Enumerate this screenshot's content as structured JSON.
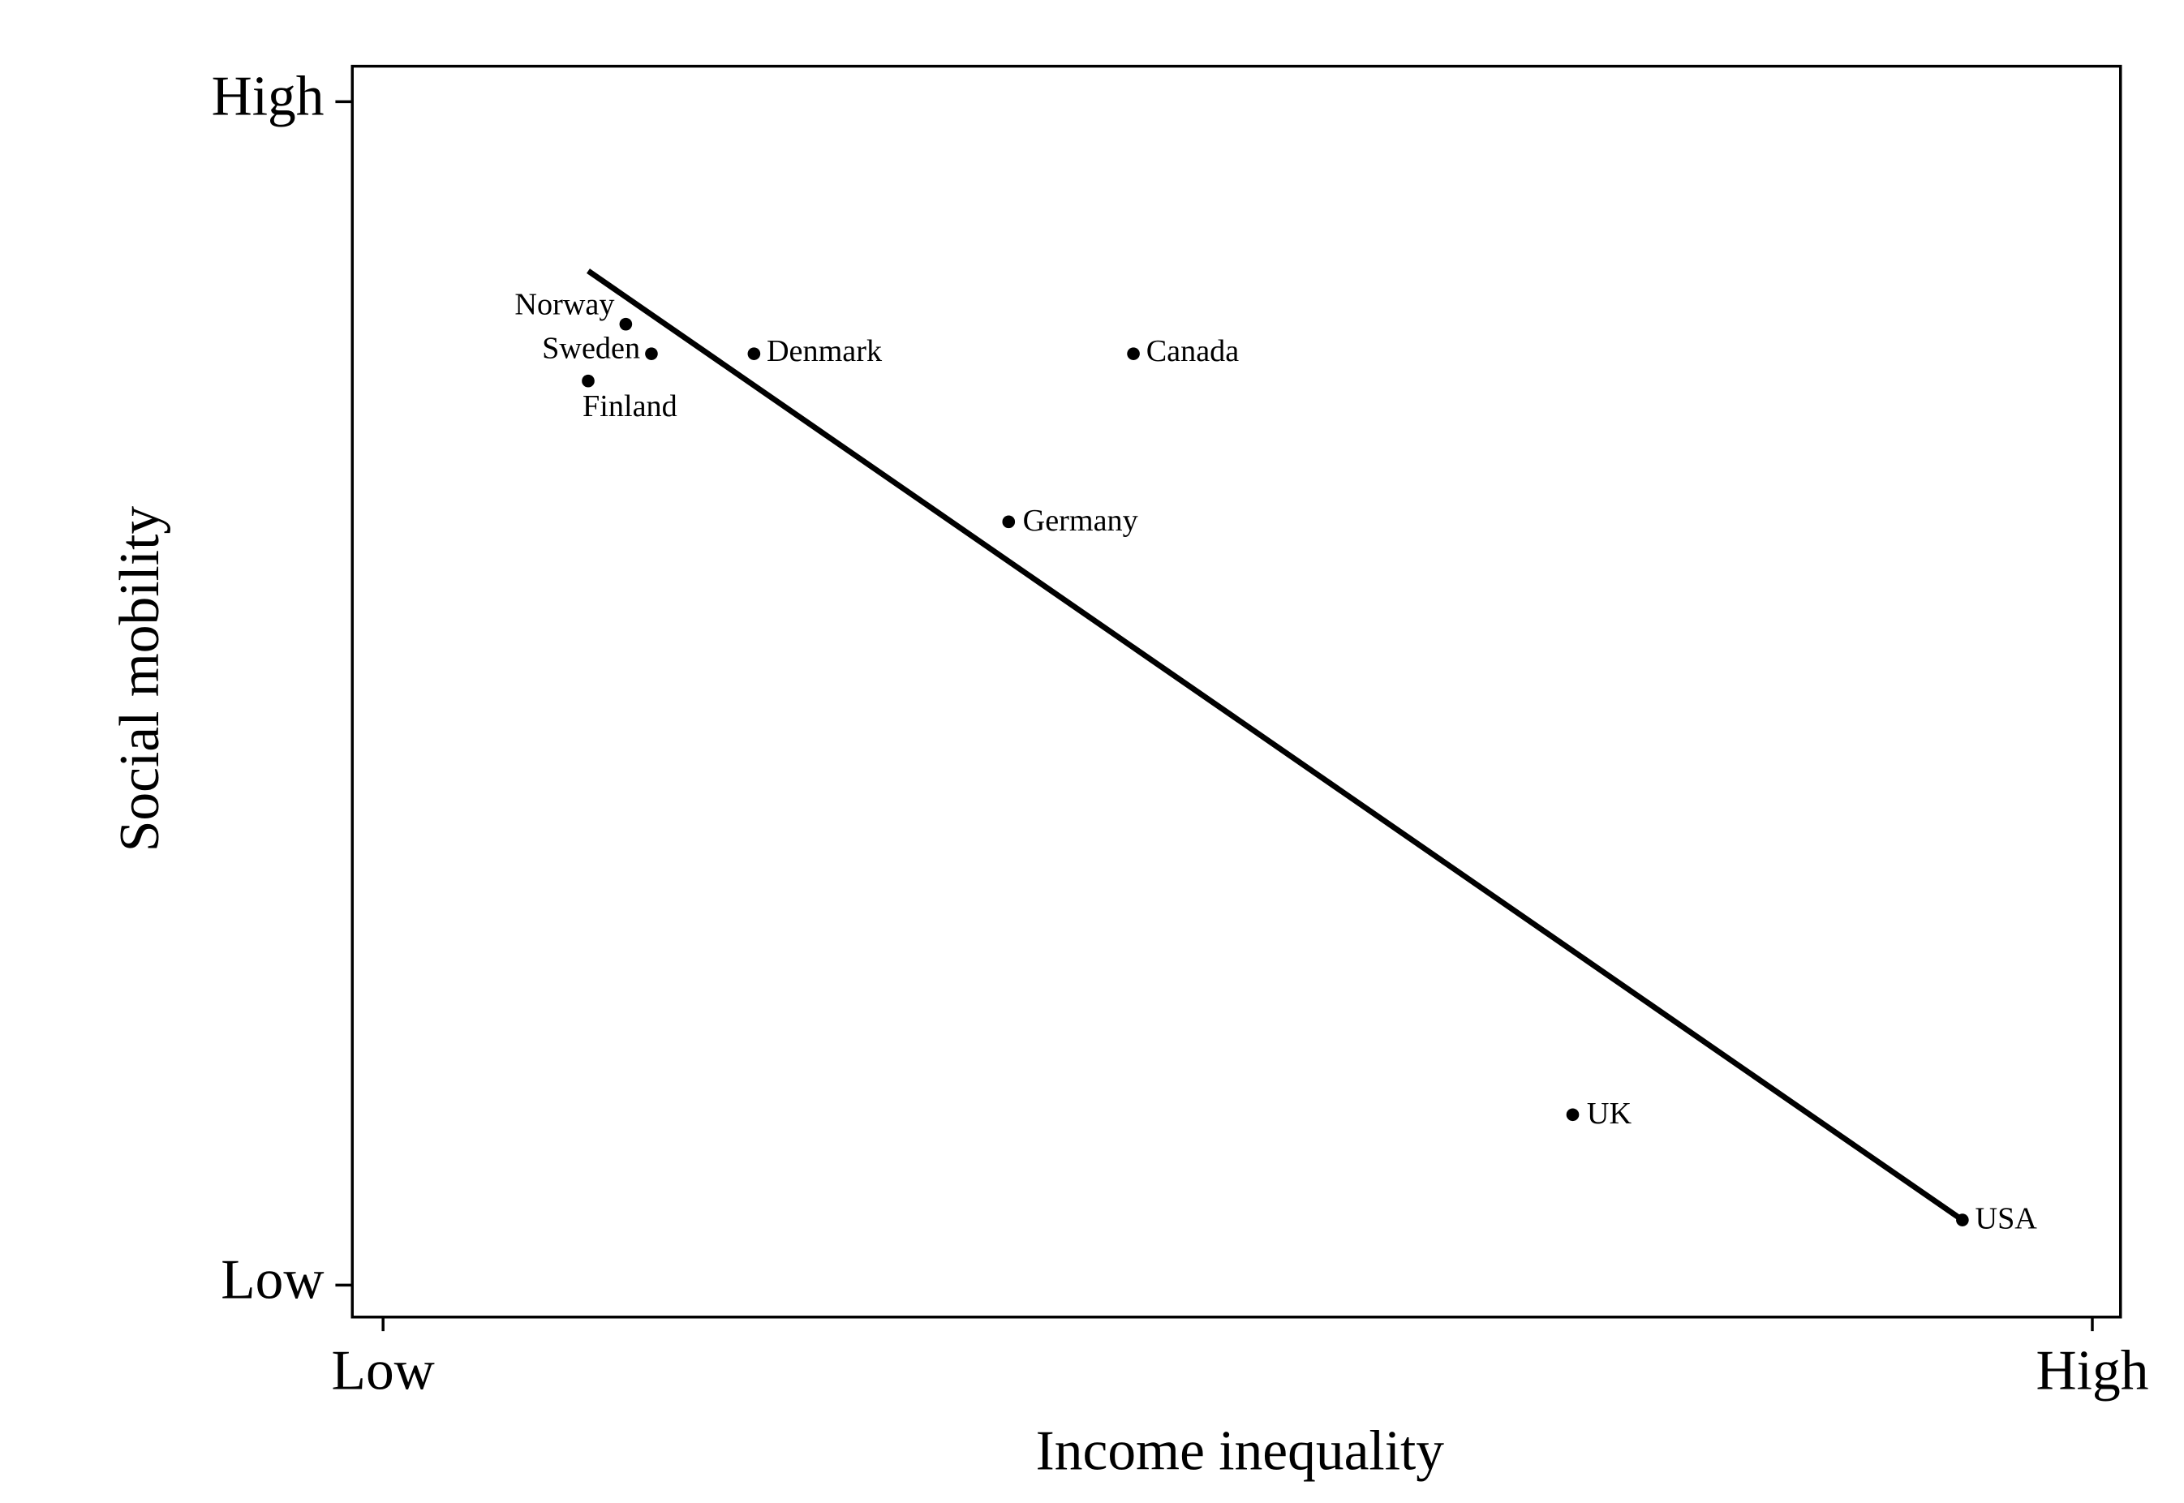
{
  "chart_data": {
    "type": "scatter",
    "x_label": "Income inequality",
    "y_label": "Social mobility",
    "xlim": [
      -0.018,
      1.0165
    ],
    "ylim": [
      -0.027,
      1.03
    ],
    "xticks": [
      {
        "value": 0,
        "label": "Low"
      },
      {
        "value": 1,
        "label": "High"
      }
    ],
    "yticks": [
      {
        "value": 0,
        "label": "Low"
      },
      {
        "value": 1,
        "label": "High"
      }
    ],
    "color": "#000000",
    "points": {
      "labels": [
        "Norway",
        "Sweden",
        "Finland",
        "Denmark",
        "Canada",
        "Germany",
        "UK",
        "USA"
      ],
      "x": [
        0.142,
        0.157,
        0.12,
        0.217,
        0.439,
        0.366,
        0.696,
        0.924
      ],
      "y": [
        0.812,
        0.787,
        0.764,
        0.787,
        0.787,
        0.645,
        0.144,
        0.055
      ]
    },
    "fit_line": {
      "x": [
        0.12,
        0.924
      ],
      "y": [
        0.857,
        0.055
      ]
    }
  }
}
